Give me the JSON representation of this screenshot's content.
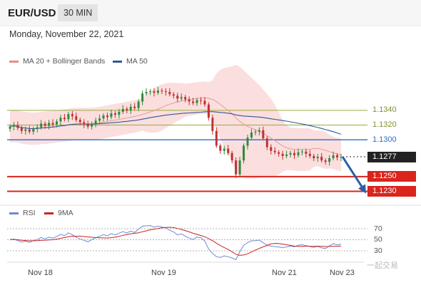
{
  "header": {
    "pair": "EUR/USD",
    "timeframe": "30 MIN"
  },
  "date": "Monday, November 22, 2021",
  "legend": {
    "bollinger": {
      "label": "MA 20 + Bollinger Bands",
      "color": "#e88c8c"
    },
    "ma50": {
      "label": "MA 50",
      "color": "#2d5a96"
    }
  },
  "price_levels": [
    {
      "value": "1.1340",
      "kind": "resistance-soft",
      "color": "#9aab3b"
    },
    {
      "value": "1.1320",
      "kind": "resistance-soft",
      "color": "#9aab3b"
    },
    {
      "value": "1.1300",
      "kind": "pivot",
      "color": "#2a6cc8"
    },
    {
      "value": "1.1277",
      "kind": "current-price",
      "color": "#222222"
    },
    {
      "value": "1.1250",
      "kind": "support",
      "color": "#d9251c"
    },
    {
      "value": "1.1230",
      "kind": "support",
      "color": "#d9251c"
    }
  ],
  "x_axis": [
    "Nov 18",
    "Nov 19",
    "Nov 21",
    "Nov 23"
  ],
  "rsi": {
    "legend": {
      "rsi": "RSI",
      "ma": "9MA"
    },
    "colors": {
      "rsi": "#6e8ad0",
      "ma": "#cc2222"
    },
    "levels": [
      "70",
      "50",
      "30"
    ]
  },
  "watermark": "一起交易",
  "chart_data": {
    "type": "candlestick",
    "close": [
      1.1318,
      1.132,
      1.1316,
      1.1312,
      1.1314,
      1.1311,
      1.1315,
      1.1317,
      1.1322,
      1.1319,
      1.1323,
      1.1321,
      1.1325,
      1.133,
      1.1328,
      1.1335,
      1.1332,
      1.1327,
      1.1324,
      1.1321,
      1.1318,
      1.1322,
      1.1326,
      1.1329,
      1.1333,
      1.1331,
      1.1336,
      1.1334,
      1.1338,
      1.1342,
      1.134,
      1.1345,
      1.1343,
      1.1352,
      1.1363,
      1.1365,
      1.1366,
      1.1364,
      1.1367,
      1.1366,
      1.1365,
      1.1362,
      1.136,
      1.1356,
      1.1358,
      1.1355,
      1.1352,
      1.135,
      1.1354,
      1.1353,
      1.1348,
      1.133,
      1.1312,
      1.1292,
      1.1285,
      1.1288,
      1.1282,
      1.1272,
      1.1253,
      1.1272,
      1.1292,
      1.1303,
      1.131,
      1.1311,
      1.1313,
      1.1302,
      1.129,
      1.1285,
      1.1283,
      1.1281,
      1.1278,
      1.128,
      1.1282,
      1.1279,
      1.1283,
      1.1284,
      1.1281,
      1.1278,
      1.1275,
      1.1277,
      1.1272,
      1.127,
      1.1275,
      1.1279,
      1.1276,
      1.1277
    ],
    "ma_window": 20,
    "ma50_window": 50,
    "forecast": [
      1.1277,
      1.123
    ]
  }
}
